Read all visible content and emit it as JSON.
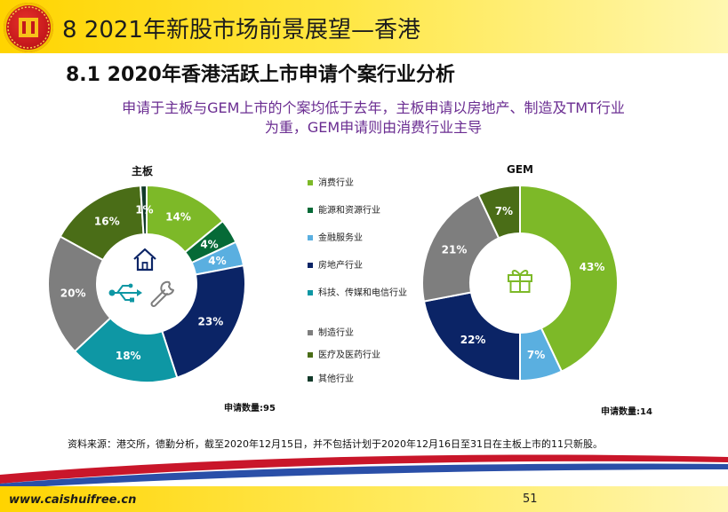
{
  "header": {
    "title": "8 2021年新股市场前景展望—香港"
  },
  "section": {
    "title": "8.1 2020年香港活跃上市申请个案行业分析"
  },
  "subtitle": {
    "line1": "申请于主板与GEM上市的个案均低于去年，主板申请以房地产、制造及TMT行业",
    "line2": "为重，GEM申请则由消费行业主导"
  },
  "legend": {
    "items": [
      {
        "label": "消费行业",
        "color": "#7db928"
      },
      {
        "label": "能源和资源行业",
        "color": "#066a37"
      },
      {
        "label": "金融服务业",
        "color": "#5aafe0"
      },
      {
        "label": "房地产行业",
        "color": "#0b2466"
      },
      {
        "label": "科技、传媒和电信行业",
        "color": "#0e97a4"
      },
      {
        "label": "制造行业",
        "color": "#7e7e7e"
      },
      {
        "label": "医疗及医药行业",
        "color": "#4a6d17"
      },
      {
        "label": "其他行业",
        "color": "#123a2a"
      }
    ]
  },
  "chart_data": [
    {
      "type": "pie",
      "title": "主板",
      "categories": [
        "消费行业",
        "能源和资源行业",
        "金融服务业",
        "房地产行业",
        "科技、传媒和电信行业",
        "制造行业",
        "医疗及医药行业",
        "其他行业"
      ],
      "values": [
        14,
        4,
        4,
        23,
        18,
        20,
        16,
        1
      ],
      "labels": [
        "14%",
        "4%",
        "4%",
        "23%",
        "18%",
        "20%",
        "16%",
        "1%"
      ],
      "colors": [
        "#7db928",
        "#066a37",
        "#5aafe0",
        "#0b2466",
        "#0e97a4",
        "#7e7e7e",
        "#4a6d17",
        "#123a2a"
      ],
      "count_label": "申请数量:95"
    },
    {
      "type": "pie",
      "title": "GEM",
      "categories": [
        "消费行业",
        "金融服务业",
        "房地产行业",
        "制造行业",
        "医疗及医药行业"
      ],
      "values": [
        43,
        7,
        22,
        21,
        7
      ],
      "labels": [
        "43%",
        "7%",
        "22%",
        "21%",
        "7%"
      ],
      "colors": [
        "#7db928",
        "#5aafe0",
        "#0b2466",
        "#7e7e7e",
        "#4a6d17"
      ],
      "count_label": "申请数量:14"
    }
  ],
  "icons": {
    "main": [
      "house-icon",
      "usb-icon",
      "wrench-icon"
    ],
    "gem": [
      "gift-icon"
    ],
    "logo": "logo-emblem-icon"
  },
  "source": {
    "text": "资料来源：港交所，德勤分析，截至2020年12月15日，并不包括计划于2020年12月16日至31日在主板上市的11只新股。"
  },
  "footer": {
    "website": "www.caishuifree.cn",
    "page": "51"
  }
}
